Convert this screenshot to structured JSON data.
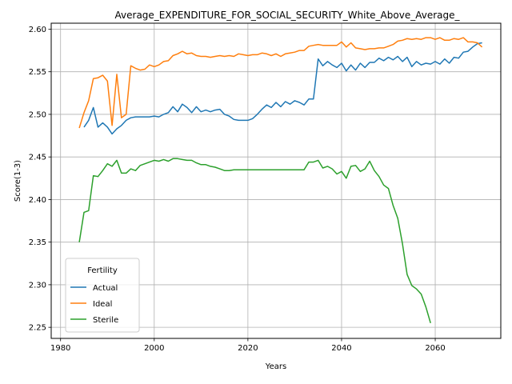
{
  "chart_data": {
    "type": "line",
    "title": "Average_EXPENDITURE_FOR_SOCIAL_SECURITY_White_Above_Average_",
    "xlabel": "Years",
    "ylabel": "Score(1-3)",
    "xlim": [
      1978,
      2074
    ],
    "ylim": [
      2.237,
      2.607
    ],
    "xticks": [
      1980,
      2000,
      2020,
      2040,
      2060
    ],
    "yticks": [
      2.25,
      2.3,
      2.35,
      2.4,
      2.45,
      2.5,
      2.55,
      2.6
    ],
    "xtick_labels": [
      "1980",
      "2000",
      "2020",
      "2040",
      "2060"
    ],
    "ytick_labels": [
      "2.25",
      "2.30",
      "2.35",
      "2.40",
      "2.45",
      "2.50",
      "2.55",
      "2.60"
    ],
    "grid": true,
    "legend": {
      "title": "Fertility",
      "placement": "lower-left"
    },
    "series": [
      {
        "name": "Actual",
        "color": "#1f77b4",
        "x": [
          1985,
          1986,
          1987,
          1988,
          1989,
          1990,
          1991,
          1992,
          1993,
          1994,
          1995,
          1996,
          1997,
          1998,
          1999,
          2000,
          2001,
          2002,
          2003,
          2004,
          2005,
          2006,
          2007,
          2008,
          2009,
          2010,
          2011,
          2012,
          2013,
          2014,
          2015,
          2016,
          2017,
          2018,
          2019,
          2020,
          2021,
          2022,
          2023,
          2024,
          2025,
          2026,
          2027,
          2028,
          2029,
          2030,
          2031,
          2032,
          2033,
          2034,
          2035,
          2036,
          2037,
          2038,
          2039,
          2040,
          2041,
          2042,
          2043,
          2044,
          2045,
          2046,
          2047,
          2048,
          2049,
          2050,
          2051,
          2052,
          2053,
          2054,
          2055,
          2056,
          2057,
          2058,
          2059,
          2060,
          2061,
          2062,
          2063,
          2064,
          2065,
          2066,
          2067,
          2068,
          2069,
          2070
        ],
        "values": [
          2.485,
          2.493,
          2.508,
          2.485,
          2.49,
          2.485,
          2.477,
          2.483,
          2.487,
          2.493,
          2.496,
          2.497,
          2.497,
          2.497,
          2.497,
          2.498,
          2.497,
          2.5,
          2.502,
          2.509,
          2.503,
          2.512,
          2.508,
          2.502,
          2.509,
          2.503,
          2.505,
          2.503,
          2.505,
          2.506,
          2.5,
          2.498,
          2.494,
          2.493,
          2.493,
          2.493,
          2.495,
          2.5,
          2.506,
          2.511,
          2.508,
          2.514,
          2.509,
          2.515,
          2.512,
          2.516,
          2.514,
          2.511,
          2.518,
          2.518,
          2.565,
          2.557,
          2.562,
          2.558,
          2.555,
          2.56,
          2.551,
          2.558,
          2.552,
          2.56,
          2.555,
          2.561,
          2.561,
          2.566,
          2.563,
          2.567,
          2.564,
          2.568,
          2.562,
          2.567,
          2.556,
          2.562,
          2.558,
          2.56,
          2.559,
          2.562,
          2.559,
          2.565,
          2.56,
          2.567,
          2.566,
          2.573,
          2.574,
          2.579,
          2.583,
          2.584
        ]
      },
      {
        "name": "Ideal",
        "color": "#ff7f0e",
        "x": [
          1984,
          1985,
          1986,
          1987,
          1988,
          1989,
          1990,
          1991,
          1992,
          1993,
          1994,
          1995,
          1996,
          1997,
          1998,
          1999,
          2000,
          2001,
          2002,
          2003,
          2004,
          2005,
          2006,
          2007,
          2008,
          2009,
          2010,
          2011,
          2012,
          2013,
          2014,
          2015,
          2016,
          2017,
          2018,
          2019,
          2020,
          2021,
          2022,
          2023,
          2024,
          2025,
          2026,
          2027,
          2028,
          2029,
          2030,
          2031,
          2032,
          2033,
          2034,
          2035,
          2036,
          2037,
          2038,
          2039,
          2040,
          2041,
          2042,
          2043,
          2044,
          2045,
          2046,
          2047,
          2048,
          2049,
          2050,
          2051,
          2052,
          2053,
          2054,
          2055,
          2056,
          2057,
          2058,
          2059,
          2060,
          2061,
          2062,
          2063,
          2064,
          2065,
          2066,
          2067,
          2068,
          2069,
          2070
        ],
        "values": [
          2.484,
          2.502,
          2.516,
          2.542,
          2.543,
          2.546,
          2.539,
          2.487,
          2.547,
          2.496,
          2.5,
          2.557,
          2.554,
          2.552,
          2.553,
          2.558,
          2.556,
          2.558,
          2.562,
          2.563,
          2.569,
          2.571,
          2.574,
          2.571,
          2.572,
          2.569,
          2.568,
          2.568,
          2.567,
          2.568,
          2.569,
          2.568,
          2.569,
          2.568,
          2.571,
          2.57,
          2.569,
          2.57,
          2.57,
          2.572,
          2.571,
          2.569,
          2.571,
          2.568,
          2.571,
          2.572,
          2.573,
          2.575,
          2.575,
          2.58,
          2.581,
          2.582,
          2.581,
          2.581,
          2.581,
          2.581,
          2.585,
          2.579,
          2.584,
          2.578,
          2.577,
          2.576,
          2.577,
          2.577,
          2.578,
          2.578,
          2.58,
          2.582,
          2.586,
          2.587,
          2.589,
          2.588,
          2.589,
          2.588,
          2.59,
          2.59,
          2.588,
          2.59,
          2.587,
          2.587,
          2.589,
          2.588,
          2.59,
          2.585,
          2.585,
          2.584,
          2.579
        ]
      },
      {
        "name": "Sterile",
        "color": "#2ca02c",
        "x": [
          1984,
          1985,
          1986,
          1987,
          1988,
          1989,
          1990,
          1991,
          1992,
          1993,
          1994,
          1995,
          1996,
          1997,
          1998,
          1999,
          2000,
          2001,
          2002,
          2003,
          2004,
          2005,
          2006,
          2007,
          2008,
          2009,
          2010,
          2011,
          2012,
          2013,
          2014,
          2015,
          2016,
          2017,
          2018,
          2019,
          2020,
          2021,
          2022,
          2023,
          2024,
          2025,
          2026,
          2027,
          2028,
          2029,
          2030,
          2031,
          2032,
          2033,
          2034,
          2035,
          2036,
          2037,
          2038,
          2039,
          2040,
          2041,
          2042,
          2043,
          2044,
          2045,
          2046,
          2047,
          2048,
          2049,
          2050,
          2051,
          2052,
          2053,
          2054,
          2055,
          2056,
          2057,
          2058,
          2059
        ],
        "values": [
          2.35,
          2.385,
          2.387,
          2.428,
          2.427,
          2.434,
          2.442,
          2.439,
          2.446,
          2.431,
          2.431,
          2.436,
          2.434,
          2.44,
          2.442,
          2.444,
          2.446,
          2.445,
          2.447,
          2.445,
          2.448,
          2.448,
          2.447,
          2.446,
          2.446,
          2.443,
          2.441,
          2.441,
          2.439,
          2.438,
          2.436,
          2.434,
          2.434,
          2.435,
          2.435,
          2.435,
          2.435,
          2.435,
          2.435,
          2.435,
          2.435,
          2.435,
          2.435,
          2.435,
          2.435,
          2.435,
          2.435,
          2.435,
          2.435,
          2.444,
          2.444,
          2.446,
          2.437,
          2.439,
          2.436,
          2.43,
          2.433,
          2.425,
          2.439,
          2.44,
          2.433,
          2.436,
          2.445,
          2.434,
          2.427,
          2.417,
          2.413,
          2.393,
          2.378,
          2.348,
          2.312,
          2.299,
          2.295,
          2.289,
          2.274,
          2.255
        ]
      }
    ]
  }
}
